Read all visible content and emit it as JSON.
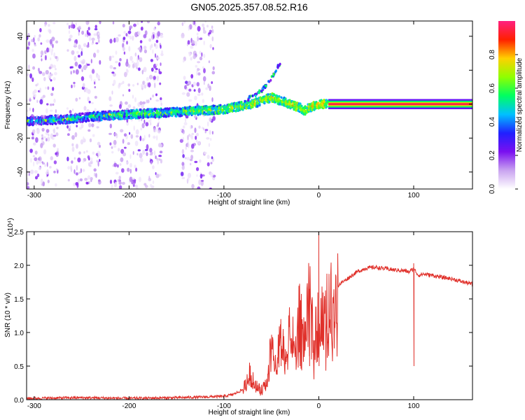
{
  "title": "GN05.2025.357.08.52.R16",
  "colors": {
    "trace": "#e0302a",
    "background": "#ffffff",
    "axis": "#000000"
  },
  "chart_data": [
    {
      "type": "heatmap",
      "xlabel": "Height of straight line (km)",
      "ylabel": "Frequency (Hz)",
      "xlim": [
        -308,
        162
      ],
      "ylim": [
        -50,
        49
      ],
      "x_ticks": [
        "-300",
        "-200",
        "-100",
        "0",
        "100"
      ],
      "y_ticks": [
        "-40",
        "-20",
        "0",
        "20",
        "40"
      ],
      "colorbar": {
        "label": "Normalized spectral amplitude",
        "range": [
          0,
          1
        ],
        "ticks": [
          "0.0",
          "0.2",
          "0.4",
          "0.6",
          "0.8"
        ],
        "colormap": [
          "#ffffff",
          "#c9a3f0",
          "#7a10f0",
          "#2020ff",
          "#00c0ff",
          "#00ff60",
          "#90ff00",
          "#ffd000",
          "#ff2000",
          "#ff2080"
        ]
      },
      "ridge": {
        "x": [
          -308,
          -270,
          -230,
          -200,
          -160,
          -130,
          -100,
          -80,
          -65,
          -50,
          -40,
          -30,
          -20,
          -15,
          -10,
          0,
          10,
          162
        ],
        "y": [
          -10,
          -9,
          -7,
          -6,
          -5,
          -4,
          -3,
          -1,
          1,
          4,
          2,
          0,
          -2,
          -4,
          -2,
          0,
          0,
          0
        ]
      },
      "burst": {
        "x": [
          -75,
          -60,
          -50,
          -40
        ],
        "y": [
          3,
          8,
          15,
          25
        ]
      },
      "band_column_ranges": [
        [
          -308,
          -275
        ],
        [
          -265,
          -230
        ],
        [
          -220,
          -165
        ],
        [
          -145,
          -110
        ]
      ]
    },
    {
      "type": "line",
      "xlabel": "Height of straight line (km)",
      "ylabel": "SNR (10 * v/v)",
      "y_scale_label": "(x10⁴)",
      "xlim": [
        -308,
        162
      ],
      "ylim": [
        0,
        2.5
      ],
      "x_ticks": [
        "-300",
        "-200",
        "-100",
        "0",
        "100"
      ],
      "y_ticks": [
        "0.0",
        "0.5",
        "1.0",
        "1.5",
        "2.0",
        "2.5"
      ],
      "series": [
        {
          "x": [
            -308,
            -250,
            -200,
            -150,
            -120,
            -100,
            -90,
            -80,
            -72,
            -68,
            -60,
            -55,
            -50,
            -45,
            -40,
            -35,
            -30,
            -25,
            -20,
            -15,
            -10,
            -5,
            0,
            5,
            10,
            15,
            20,
            30,
            40,
            50,
            60,
            70,
            80,
            90,
            95,
            100,
            105,
            110,
            120,
            130,
            140,
            150,
            162
          ],
          "y": [
            0.02,
            0.03,
            0.02,
            0.03,
            0.04,
            0.05,
            0.08,
            0.15,
            0.45,
            0.25,
            0.15,
            0.3,
            0.9,
            0.5,
            1.0,
            0.6,
            1.2,
            0.7,
            1.4,
            0.9,
            1.6,
            1.0,
            1.5,
            1.2,
            1.5,
            1.6,
            1.7,
            1.8,
            1.9,
            1.96,
            1.97,
            1.95,
            1.93,
            1.92,
            1.9,
            1.95,
            1.85,
            1.87,
            1.85,
            1.82,
            1.8,
            1.76,
            1.72
          ]
        }
      ],
      "spikes": [
        {
          "x": 0,
          "y": 2.5
        },
        {
          "x": -10,
          "y": 1.65
        },
        {
          "x": 100,
          "y": 2.03
        },
        {
          "x": -40,
          "y": 1.2
        },
        {
          "x": -20,
          "y": 1.48
        }
      ]
    }
  ]
}
